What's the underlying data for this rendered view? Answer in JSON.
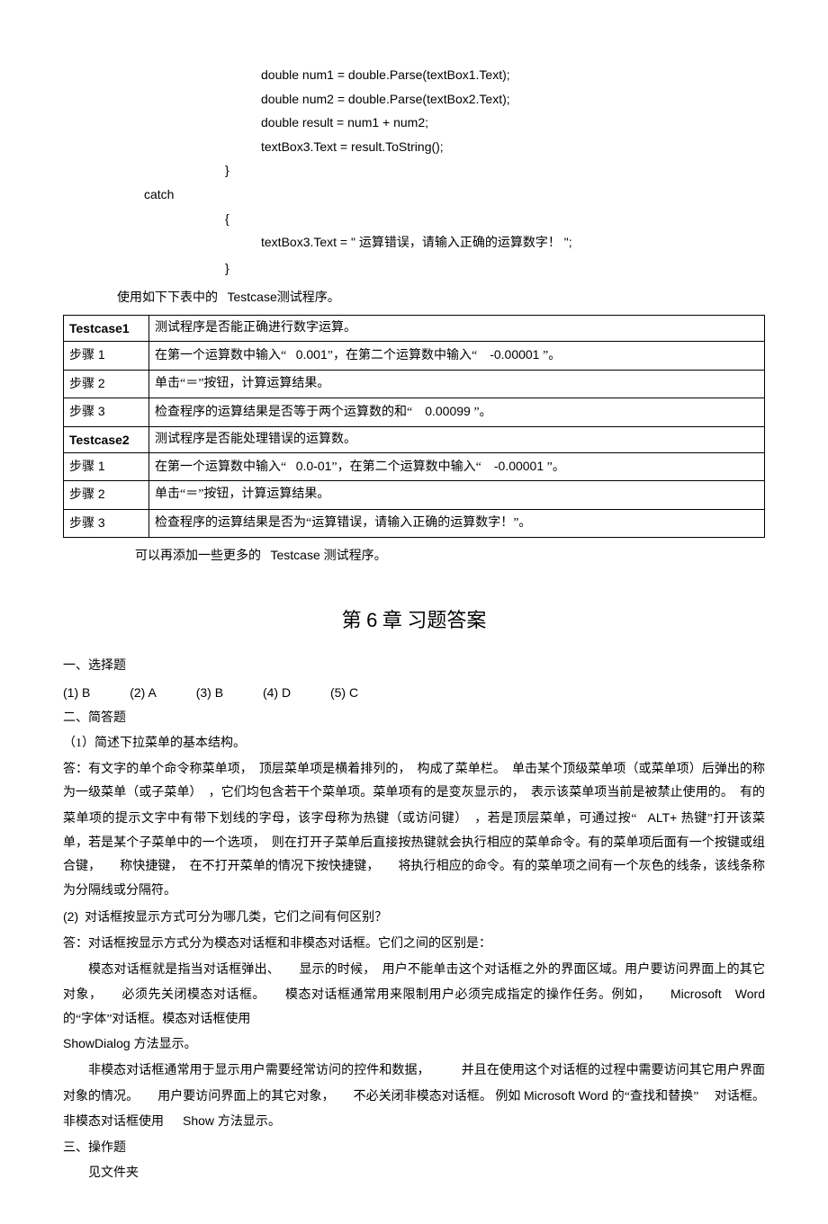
{
  "code": {
    "l1": "double num1 = double.Parse(textBox1.Text);",
    "l2": "double num2 = double.Parse(textBox2.Text);",
    "l3": "double result = num1 + num2;",
    "l4": "textBox3.Text = result.ToString();",
    "l5": "}",
    "l6": "catch",
    "l7": "{",
    "l8_a": "textBox3.Text = \" ",
    "l8_b": "运算错误，请输入正确的运算数字！",
    "l8_c": "    \";",
    "l9": "}"
  },
  "tableIntro": {
    "a": "使用如下下表中的",
    "b": "Testcase",
    "c": "测试程序。"
  },
  "table": {
    "r1c1": "Testcase1",
    "r1c2": "测试程序是否能正确进行数字运算。",
    "r2c1a": "步骤",
    "r2c1b": " 1",
    "r2c2a": "在第一个运算数中输入“",
    "r2c2b": "0.001",
    "r2c2c": "”，在第二个运算数中输入“",
    "r2c2d": "-0.00001",
    "r2c2e": "”。",
    "r3c1a": "步骤",
    "r3c1b": " 2",
    "r3c2": "单击“＝”按钮，计算运算结果。",
    "r4c1a": "步骤",
    "r4c1b": " 3",
    "r4c2a": "检查程序的运算结果是否等于两个运算数的和“",
    "r4c2b": "0.00099",
    "r4c2c": "”。",
    "r5c1": "Testcase2",
    "r5c2": "测试程序是否能处理错误的运算数。",
    "r6c1a": "步骤",
    "r6c1b": " 1",
    "r6c2a": "在第一个运算数中输入“",
    "r6c2b": "0.0-01",
    "r6c2c": "”，在第二个运算数中输入“",
    "r6c2d": "-0.00001",
    "r6c2e": "”。",
    "r7c1a": "步骤",
    "r7c1b": " 2",
    "r7c2": "单击“＝”按钮，计算运算结果。",
    "r8c1a": "步骤",
    "r8c1b": " 3",
    "r8c2": "检查程序的运算结果是否为“运算错误，请输入正确的运算数字！”。"
  },
  "afterTable": {
    "a": "可以再添加一些更多的",
    "b": "Testcase ",
    "c": "测试程序。"
  },
  "chapter": {
    "pre": "第 ",
    "num": "6",
    "post": " 章  习题答案"
  },
  "sec1": "一、选择题",
  "answers": {
    "a1": "(1) B",
    "a2": "(2) A",
    "a3": "(3) B",
    "a4": "(4) D",
    "a5": "(5) C"
  },
  "sec2": "二、简答题",
  "q1": "（1）简述下拉菜单的基本结构。",
  "p1a": "答：有文字的单个命令称菜单项，　顶层菜单项是横着排列的，　构成了菜单栏。　单击某个顶级菜单项（或菜单项）后弹出的称为一级菜单（或子菜单）　，它们均包含若干个菜单项。菜单项有的是变灰显示的，　表示该菜单项当前是被禁止使用的。　有的菜单项的提示文字中有带下划线的字母，该字母称为热键（或访问键）　，若是顶层菜单，可通过按“",
  "p1b": "ALT+ ",
  "p1c": "热键”打开该菜单，若是某个子菜单中的一个选项，　则在打开子菜单后直接按热键就会执行相应的菜单命令。有的菜单项后面有一个按键或组合键，　　称快捷键，　在不打开菜单的情况下按快捷键，　　将执行相应的命令。有的菜单项之间有一个灰色的线条，该线条称为分隔线或分隔符。",
  "q2": "(2)  对话框按显示方式可分为哪几类，它们之间有何区别？",
  "p2": "答：对话框按显示方式分为模态对话框和非模态对话框。它们之间的区别是：",
  "p3a": "模态对话框就是指当对话框弹出、　　显示的时候，　用户不能单击这个对话框之外的界面区域。用户要访问界面上的其它对象，　　必须先关闭模态对话框。　　模态对话框通常用来限制用户必须完成指定的操作任务。例如，　　",
  "p3b": "Microsoft　Word ",
  "p3c": "的“字体”对话框。模态对话框使用",
  "p3d": "ShowDialog  ",
  "p3e": "方法显示。",
  "p4a": "非模态对话框通常用于显示用户需要经常访问的控件和数据，　　　并且在使用这个对话框的过程中需要访问其它用户界面对象的情况。　　用户要访问界面上的其它对象，　　不必关闭非模态对话框。 例如 ",
  "p4b": "Microsoft Word ",
  "p4c": " 的“查找和替换” 　对话框。 非模态对话框使用　",
  "p4d": "Show ",
  "p4e": " 方法显示。",
  "sec3": "三、操作题",
  "p5": "见文件夹"
}
